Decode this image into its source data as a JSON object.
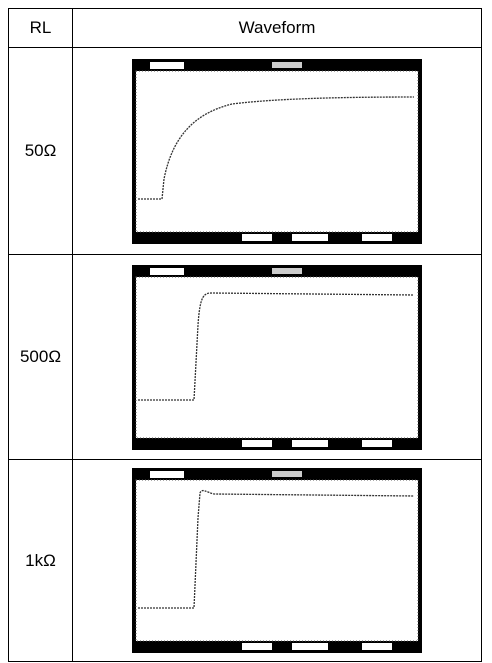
{
  "header": [
    "RL",
    "Waveform"
  ],
  "rows": [
    [
      "50Ω"
    ],
    [
      "500Ω"
    ],
    [
      "1kΩ"
    ]
  ]
}
